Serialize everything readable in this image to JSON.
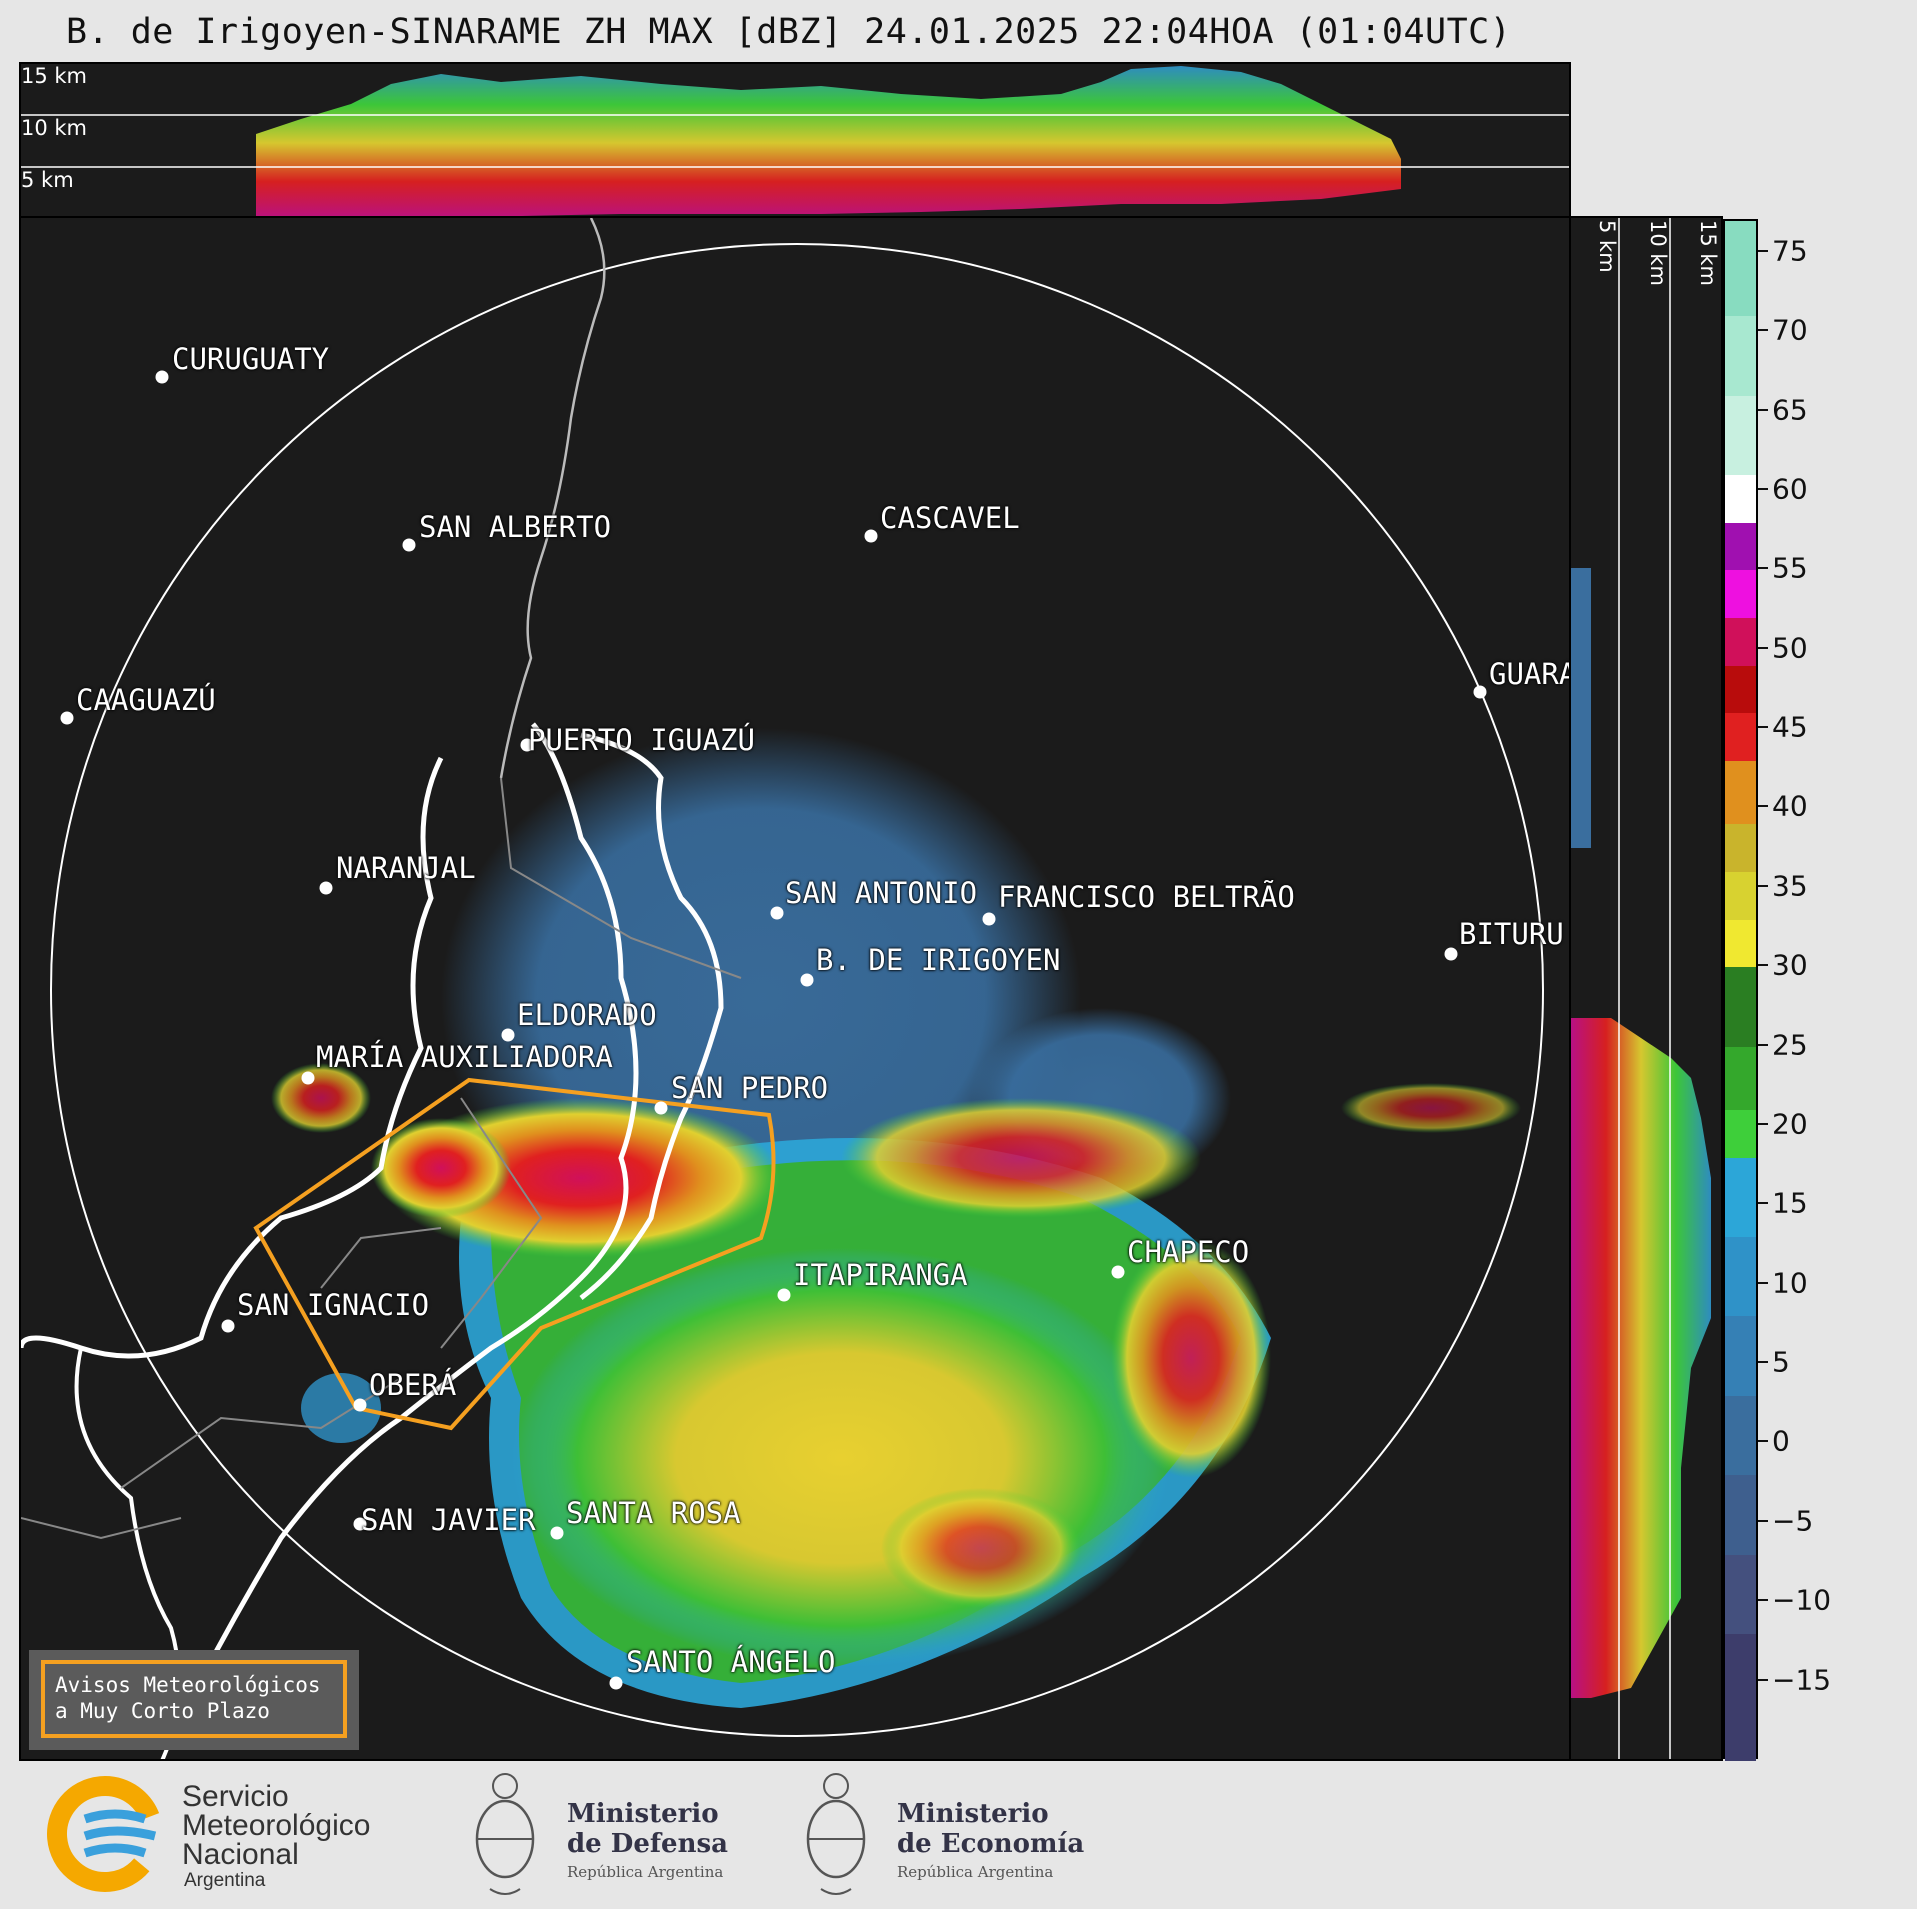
{
  "title": "B. de Irigoyen-SINARAME ZH MAX [dBZ] 24.01.2025 22:04HOA (01:04UTC)",
  "top_panel": {
    "alt_labels": [
      "15 km",
      "10 km",
      "5 km"
    ]
  },
  "right_panel": {
    "alt_labels": [
      "5 km",
      "10 km",
      "15 km"
    ]
  },
  "cities": [
    {
      "name": "CURUGUATY"
    },
    {
      "name": "SAN ALBERTO"
    },
    {
      "name": "CASCAVEL"
    },
    {
      "name": "CAAGUAZÚ"
    },
    {
      "name": "GUARA"
    },
    {
      "name": "PUERTO IGUAZÚ"
    },
    {
      "name": "NARANJAL"
    },
    {
      "name": "SAN ANTONIO"
    },
    {
      "name": "FRANCISCO BELTRÃO"
    },
    {
      "name": "BITURU"
    },
    {
      "name": "B. DE IRIGOYEN"
    },
    {
      "name": "ELDORADO"
    },
    {
      "name": "MARÍA AUXILIADORA"
    },
    {
      "name": "SAN PEDRO"
    },
    {
      "name": "CHAPECO"
    },
    {
      "name": "ITAPIRANGA"
    },
    {
      "name": "SAN IGNACIO"
    },
    {
      "name": "OBERÁ"
    },
    {
      "name": "SAN JAVIER"
    },
    {
      "name": "SANTA ROSA"
    },
    {
      "name": "SANTO ÁNGELO"
    }
  ],
  "warning_box": {
    "line1": "Avisos Meteorológicos",
    "line2": "a Muy Corto Plazo"
  },
  "colorbar": {
    "unit": "dBZ",
    "range": [
      -20,
      77
    ],
    "ticks": [
      "75",
      "70",
      "65",
      "60",
      "55",
      "50",
      "45",
      "40",
      "35",
      "30",
      "25",
      "20",
      "15",
      "10",
      "5",
      "0",
      "−5",
      "−10",
      "−15"
    ],
    "tick_values": [
      75,
      70,
      65,
      60,
      55,
      50,
      45,
      40,
      35,
      30,
      25,
      20,
      15,
      10,
      5,
      0,
      -5,
      -10,
      -15
    ],
    "colors": [
      {
        "from": -20,
        "to": -12,
        "color": "#3d3d6b"
      },
      {
        "from": -12,
        "to": -7,
        "color": "#44507e"
      },
      {
        "from": -7,
        "to": -2,
        "color": "#3e5f8e"
      },
      {
        "from": -2,
        "to": 3,
        "color": "#3a6e9e"
      },
      {
        "from": 3,
        "to": 8,
        "color": "#3580b5"
      },
      {
        "from": 8,
        "to": 13,
        "color": "#2f92c8"
      },
      {
        "from": 13,
        "to": 18,
        "color": "#2ca6d8"
      },
      {
        "from": 18,
        "to": 21,
        "color": "#3ecf3a"
      },
      {
        "from": 21,
        "to": 25,
        "color": "#34a82c"
      },
      {
        "from": 25,
        "to": 30,
        "color": "#2a7e22"
      },
      {
        "from": 30,
        "to": 33,
        "color": "#f0e830"
      },
      {
        "from": 33,
        "to": 36,
        "color": "#d8d230"
      },
      {
        "from": 36,
        "to": 39,
        "color": "#c9b42c"
      },
      {
        "from": 39,
        "to": 43,
        "color": "#e0901e"
      },
      {
        "from": 43,
        "to": 46,
        "color": "#e02020"
      },
      {
        "from": 46,
        "to": 49,
        "color": "#b80c0c"
      },
      {
        "from": 49,
        "to": 52,
        "color": "#d0105a"
      },
      {
        "from": 52,
        "to": 55,
        "color": "#ee10e0"
      },
      {
        "from": 55,
        "to": 58,
        "color": "#a010b0"
      },
      {
        "from": 58,
        "to": 61,
        "color": "#ffffff"
      },
      {
        "from": 61,
        "to": 66,
        "color": "#c8f0e0"
      },
      {
        "from": 66,
        "to": 71,
        "color": "#a8e8d0"
      },
      {
        "from": 71,
        "to": 77,
        "color": "#88dcc0"
      }
    ]
  },
  "footer": {
    "smn": {
      "line1": "Servicio",
      "line2": "Meteorológico",
      "line3": "Nacional",
      "line4": "Argentina"
    },
    "defensa": {
      "line1": "Ministerio",
      "line2": "de Defensa",
      "line3": "República Argentina"
    },
    "economia": {
      "line1": "Ministerio",
      "line2": "de Economía",
      "line3": "República Argentina"
    }
  }
}
